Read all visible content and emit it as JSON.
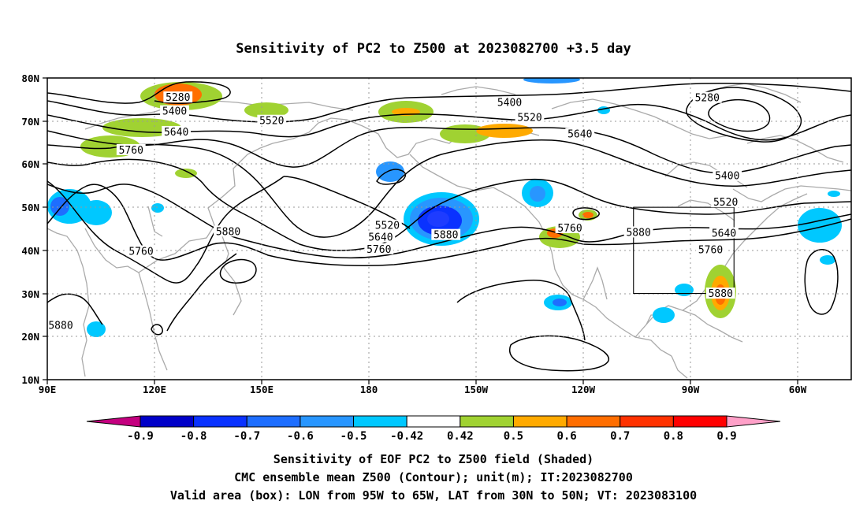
{
  "title": "Sensitivity of PC2 to Z500 at 2023082700 +3.5 day",
  "lat_labels": [
    "80N",
    "70N",
    "60N",
    "50N",
    "40N",
    "30N",
    "20N",
    "10N"
  ],
  "lon_labels": [
    "90E",
    "120E",
    "150E",
    "180",
    "150W",
    "120W",
    "90W",
    "60W"
  ],
  "contour_labels": [
    {
      "text": "5280",
      "lon": 129.0,
      "lat": 75.4
    },
    {
      "text": "5400",
      "lon": 128.0,
      "lat": 72.2
    },
    {
      "text": "5520",
      "lon": 157.0,
      "lat": 70.0
    },
    {
      "text": "5640",
      "lon": 128.5,
      "lat": 67.4
    },
    {
      "text": "5760",
      "lon": 115.0,
      "lat": 63.2
    },
    {
      "text": "5400",
      "lon": -132.0,
      "lat": 74.2
    },
    {
      "text": "5520",
      "lon": -126.0,
      "lat": 70.8
    },
    {
      "text": "5640",
      "lon": -111.0,
      "lat": 66.9
    },
    {
      "text": "5280",
      "lon": -73.0,
      "lat": 75.3
    },
    {
      "text": "5400",
      "lon": -67.0,
      "lat": 57.2
    },
    {
      "text": "5520",
      "lon": -67.5,
      "lat": 51.1
    },
    {
      "text": "5640",
      "lon": -68.0,
      "lat": 43.9
    },
    {
      "text": "5760",
      "lon": -72.0,
      "lat": 40.1
    },
    {
      "text": "5880",
      "lon": -69.0,
      "lat": 29.9
    },
    {
      "text": "5880",
      "lon": -93.5,
      "lat": 44.1
    },
    {
      "text": "5760",
      "lon": -114.0,
      "lat": 45.1
    },
    {
      "text": "5880",
      "lon": -151.0,
      "lat": 43.5
    },
    {
      "text": "5520",
      "lon": -168.5,
      "lat": 45.7
    },
    {
      "text": "5640",
      "lon": -170.5,
      "lat": 43.0
    },
    {
      "text": "5760",
      "lon": -171.0,
      "lat": 40.2
    },
    {
      "text": "5880",
      "lon": 144.0,
      "lat": 44.3
    },
    {
      "text": "5760",
      "lon": 118.0,
      "lat": 39.7
    },
    {
      "text": "5880",
      "lon": 94.0,
      "lat": 22.5
    }
  ],
  "colorbar": {
    "labels": [
      "-0.9",
      "-0.8",
      "-0.7",
      "-0.6",
      "-0.5",
      "-0.42",
      "0.42",
      "0.5",
      "0.6",
      "0.7",
      "0.8",
      "0.9"
    ],
    "colors": [
      "#c4007f",
      "#0000c8",
      "#0a32ff",
      "#1e6eff",
      "#2896ff",
      "#00c8ff",
      "#ffffff",
      "#a0d232",
      "#ffaa00",
      "#ff6e00",
      "#ff3200",
      "#ff0000",
      "#ffa0c8"
    ]
  },
  "caption": {
    "line1": "Sensitivity of EOF PC2 to Z500 field (Shaded)",
    "line2": "CMC ensemble mean Z500 (Contour); unit(m); IT:2023082700",
    "line3": "Valid area (box): LON from 95W to 65W, LAT from 30N to 50N; VT: 2023083100"
  },
  "valid_box": {
    "lon_min": -95,
    "lon_max": -65,
    "lat_min": 30,
    "lat_max": 50
  }
}
